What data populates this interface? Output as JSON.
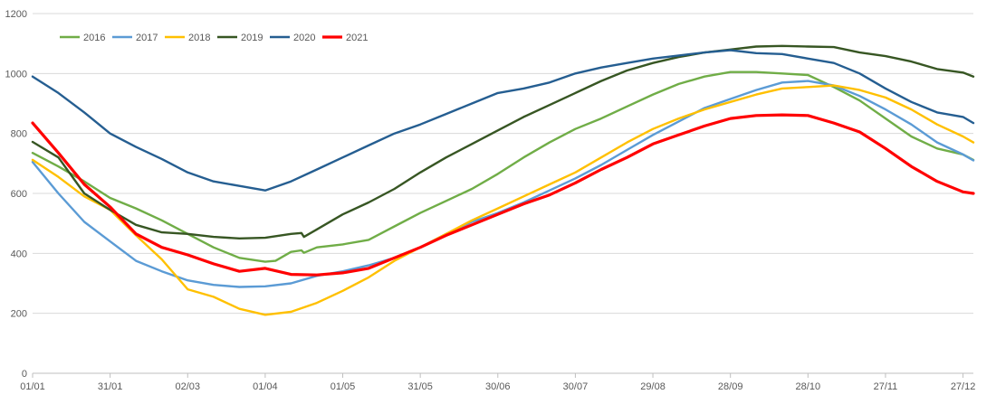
{
  "chart_data": {
    "type": "line",
    "title": "",
    "xlabel": "",
    "ylabel": "",
    "ylim": [
      0,
      1200
    ],
    "xlim": [
      "01/01",
      "31/12"
    ],
    "yticks": [
      0,
      200,
      400,
      600,
      800,
      1000,
      1200
    ],
    "xticks": [
      "01/01",
      "31/01",
      "02/03",
      "01/04",
      "01/05",
      "31/05",
      "30/06",
      "30/07",
      "29/08",
      "28/09",
      "28/10",
      "27/11",
      "27/12"
    ],
    "grid": "horizontal",
    "legend_position": "top-left",
    "series": [
      {
        "name": "2016",
        "color": "#70AD47",
        "x": [
          "01/01",
          "11/01",
          "21/01",
          "31/01",
          "10/02",
          "20/02",
          "02/03",
          "12/03",
          "22/03",
          "01/04",
          "05/04",
          "11/04",
          "15/04",
          "16/04",
          "21/04",
          "01/05",
          "11/05",
          "21/05",
          "31/05",
          "10/06",
          "20/06",
          "30/06",
          "10/07",
          "20/07",
          "30/07",
          "09/08",
          "19/08",
          "29/08",
          "08/09",
          "18/09",
          "28/09",
          "08/10",
          "18/10",
          "28/10",
          "07/11",
          "17/11",
          "27/11",
          "07/12",
          "17/12",
          "27/12",
          "31/12"
        ],
        "values": [
          735,
          690,
          640,
          585,
          550,
          510,
          465,
          420,
          385,
          372,
          375,
          405,
          410,
          402,
          420,
          430,
          445,
          490,
          535,
          575,
          615,
          665,
          720,
          770,
          815,
          850,
          890,
          930,
          965,
          990,
          1005,
          1005,
          1000,
          995,
          955,
          910,
          850,
          790,
          750,
          730,
          712
        ]
      },
      {
        "name": "2017",
        "color": "#5B9BD5",
        "x": [
          "01/01",
          "11/01",
          "21/01",
          "31/01",
          "10/02",
          "20/02",
          "02/03",
          "12/03",
          "22/03",
          "01/04",
          "11/04",
          "21/04",
          "01/05",
          "11/05",
          "21/05",
          "31/05",
          "10/06",
          "20/06",
          "30/06",
          "10/07",
          "20/07",
          "30/07",
          "09/08",
          "19/08",
          "29/08",
          "08/09",
          "18/09",
          "28/09",
          "08/10",
          "18/10",
          "28/10",
          "07/11",
          "17/11",
          "27/11",
          "07/12",
          "17/12",
          "27/12",
          "31/12"
        ],
        "values": [
          705,
          600,
          505,
          440,
          375,
          340,
          310,
          295,
          288,
          290,
          300,
          325,
          340,
          360,
          385,
          420,
          465,
          505,
          535,
          570,
          610,
          650,
          695,
          745,
          795,
          840,
          885,
          915,
          945,
          970,
          975,
          960,
          925,
          880,
          830,
          770,
          730,
          710
        ]
      },
      {
        "name": "2018",
        "color": "#FFC000",
        "x": [
          "01/01",
          "11/01",
          "21/01",
          "31/01",
          "10/02",
          "20/02",
          "02/03",
          "12/03",
          "22/03",
          "01/04",
          "11/04",
          "21/04",
          "01/05",
          "11/05",
          "21/05",
          "31/05",
          "10/06",
          "20/06",
          "30/06",
          "10/07",
          "20/07",
          "30/07",
          "09/08",
          "19/08",
          "29/08",
          "08/09",
          "18/09",
          "28/09",
          "08/10",
          "18/10",
          "28/10",
          "07/11",
          "17/11",
          "27/11",
          "07/12",
          "17/12",
          "27/12",
          "31/12"
        ],
        "values": [
          712,
          655,
          590,
          545,
          460,
          380,
          280,
          255,
          215,
          195,
          205,
          235,
          275,
          320,
          375,
          420,
          465,
          510,
          550,
          590,
          630,
          670,
          720,
          770,
          815,
          850,
          880,
          905,
          930,
          950,
          955,
          960,
          945,
          920,
          880,
          830,
          790,
          770
        ]
      },
      {
        "name": "2019",
        "color": "#375623",
        "x": [
          "01/01",
          "11/01",
          "21/01",
          "31/01",
          "10/02",
          "20/02",
          "02/03",
          "12/03",
          "22/03",
          "01/04",
          "11/04",
          "15/04",
          "16/04",
          "21/04",
          "01/05",
          "11/05",
          "21/05",
          "31/05",
          "10/06",
          "20/06",
          "30/06",
          "10/07",
          "20/07",
          "30/07",
          "09/08",
          "19/08",
          "29/08",
          "08/09",
          "18/09",
          "28/09",
          "08/10",
          "18/10",
          "28/10",
          "07/11",
          "17/11",
          "27/11",
          "07/12",
          "17/12",
          "27/12",
          "31/12"
        ],
        "values": [
          772,
          720,
          600,
          545,
          495,
          470,
          465,
          455,
          450,
          452,
          465,
          468,
          455,
          480,
          530,
          570,
          615,
          670,
          720,
          765,
          810,
          855,
          895,
          935,
          975,
          1010,
          1035,
          1055,
          1070,
          1080,
          1090,
          1092,
          1090,
          1088,
          1070,
          1058,
          1040,
          1015,
          1003,
          990
        ]
      },
      {
        "name": "2020",
        "color": "#255E91",
        "x": [
          "01/01",
          "11/01",
          "21/01",
          "31/01",
          "10/02",
          "20/02",
          "02/03",
          "12/03",
          "22/03",
          "01/04",
          "11/04",
          "21/04",
          "01/05",
          "11/05",
          "21/05",
          "31/05",
          "10/06",
          "20/06",
          "30/06",
          "10/07",
          "20/07",
          "30/07",
          "09/08",
          "19/08",
          "29/08",
          "08/09",
          "18/09",
          "28/09",
          "08/10",
          "18/10",
          "28/10",
          "07/11",
          "17/11",
          "27/11",
          "07/12",
          "17/12",
          "27/12",
          "31/12"
        ],
        "values": [
          990,
          935,
          870,
          800,
          755,
          715,
          670,
          640,
          625,
          610,
          640,
          680,
          720,
          760,
          800,
          830,
          865,
          900,
          935,
          950,
          970,
          1000,
          1020,
          1035,
          1050,
          1060,
          1070,
          1078,
          1068,
          1065,
          1050,
          1035,
          1000,
          950,
          905,
          870,
          855,
          835
        ]
      },
      {
        "name": "2021",
        "color": "#FF0000",
        "x": [
          "01/01",
          "11/01",
          "21/01",
          "31/01",
          "10/02",
          "20/02",
          "02/03",
          "12/03",
          "22/03",
          "01/04",
          "11/04",
          "21/04",
          "01/05",
          "11/05",
          "21/05",
          "31/05",
          "10/06",
          "20/06",
          "30/06",
          "10/07",
          "20/07",
          "30/07",
          "09/08",
          "19/08",
          "29/08",
          "08/09",
          "18/09",
          "28/09",
          "08/10",
          "18/10",
          "28/10",
          "07/11",
          "17/11",
          "27/11",
          "07/12",
          "17/12",
          "27/12",
          "31/12"
        ],
        "values": [
          835,
          735,
          630,
          555,
          465,
          420,
          395,
          365,
          340,
          350,
          330,
          328,
          335,
          350,
          385,
          420,
          460,
          495,
          530,
          565,
          595,
          635,
          680,
          720,
          765,
          795,
          825,
          850,
          860,
          862,
          860,
          835,
          805,
          750,
          690,
          640,
          605,
          600
        ]
      }
    ]
  }
}
